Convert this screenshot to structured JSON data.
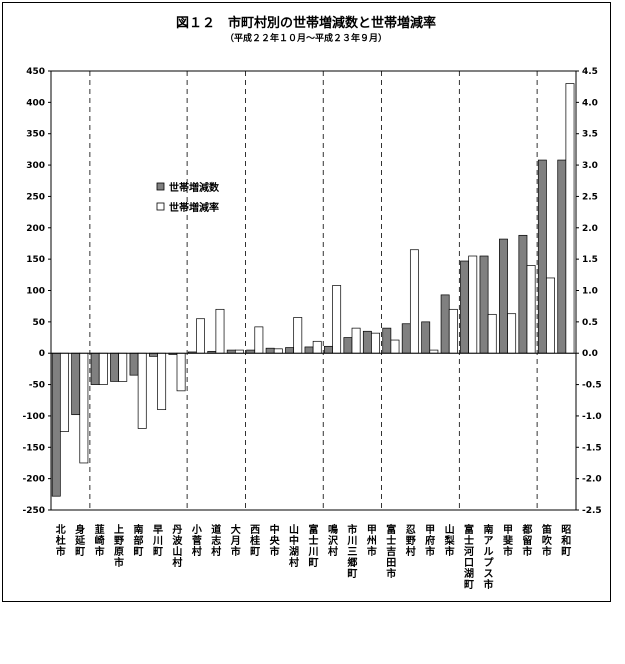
{
  "chart_data": {
    "type": "bar",
    "title": "図１２　市町村別の世帯増減数と世帯増減率",
    "subtitle": "（平成２２年１０月～平成２３年９月）",
    "legend": [
      {
        "label": "世帯増減数",
        "color": "#808080"
      },
      {
        "label": "世帯増減率",
        "color": "#ffffff"
      }
    ],
    "legend_position": "upper-left-inside",
    "y_left": {
      "min": -250,
      "max": 450,
      "step": 50,
      "ticks": [
        "450",
        "400",
        "350",
        "300",
        "250",
        "200",
        "150",
        "100",
        "50",
        "0",
        "-50",
        "-100",
        "-150",
        "-200",
        "-250"
      ]
    },
    "y_right": {
      "min": -2.5,
      "max": 4.5,
      "step": 0.5,
      "ticks": [
        "4.5",
        "4.0",
        "3.5",
        "3.0",
        "2.5",
        "2.0",
        "1.5",
        "1.0",
        "0.5",
        "0.0",
        "-0.5",
        "-1.0",
        "-1.5",
        "-2.0",
        "-2.5"
      ]
    },
    "categories": [
      "北杜市",
      "身延町",
      "韮崎市",
      "上野原市",
      "南部町",
      "早川町",
      "丹波山村",
      "小菅村",
      "道志村",
      "大月市",
      "西桂町",
      "中央市",
      "山中湖村",
      "富士川町",
      "鳴沢村",
      "市川三郷町",
      "甲州市",
      "富士吉田市",
      "忍野村",
      "甲府市",
      "山梨市",
      "富士河口湖町",
      "南アルプス市",
      "甲斐市",
      "都留市",
      "笛吹市",
      "昭和町"
    ],
    "series": [
      {
        "name": "世帯増減数",
        "values": [
          -228,
          -98,
          -50,
          -45,
          -35,
          -5,
          -2,
          2,
          3,
          5,
          5,
          8,
          9,
          10,
          11,
          25,
          35,
          40,
          47,
          50,
          93,
          147,
          155,
          182,
          188,
          308,
          308
        ]
      },
      {
        "name": "世帯増減率",
        "values": [
          -1.25,
          -1.75,
          -0.5,
          -0.45,
          -1.2,
          -0.9,
          -0.6,
          0.55,
          0.7,
          0.05,
          0.42,
          0.07,
          0.57,
          0.19,
          1.08,
          0.4,
          0.32,
          0.21,
          1.65,
          0.05,
          0.7,
          1.55,
          0.62,
          0.63,
          1.4,
          1.2,
          4.3
        ]
      }
    ],
    "grid": "vertical dashed group separators",
    "separators_after": [
      1,
      6,
      9,
      13,
      16,
      20,
      24
    ]
  }
}
